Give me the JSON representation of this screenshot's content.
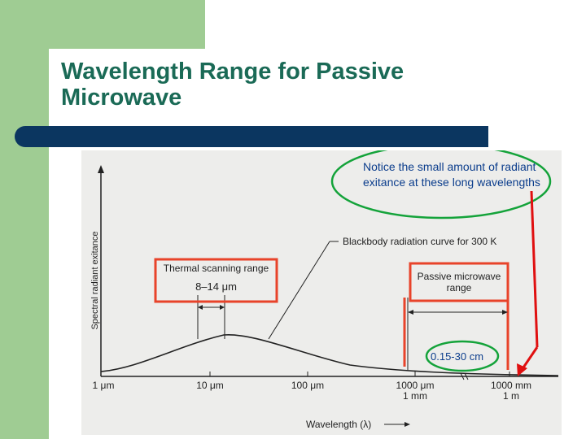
{
  "slide": {
    "title": "Wavelength Range for Passive Microwave"
  },
  "figure": {
    "ylabel": "Spectral radiant exitance",
    "xlabel": "Wavelength (λ)",
    "curve_label": "Blackbody radiation curve for 300 K",
    "thermal_box": {
      "title": "Thermal scanning range",
      "range": "8–14 μm"
    },
    "microwave_box": {
      "title": "Passive microwave range"
    },
    "x_ticks": [
      {
        "top": "1 μm",
        "bottom": ""
      },
      {
        "top": "10 μm",
        "bottom": ""
      },
      {
        "top": "100 μm",
        "bottom": ""
      },
      {
        "top": "1000 μm",
        "bottom": "1 mm"
      },
      {
        "top": "1000 mm",
        "bottom": "1 m"
      }
    ]
  },
  "annotations": {
    "callout": "Notice the small amount of radiant exitance at these long wavelengths",
    "highlight": "0.15-30 cm"
  },
  "colors": {
    "background_green": "#9fcc93",
    "title_color": "#1a6a56",
    "title_bar": "#0b3660",
    "box_red": "#e8432a",
    "ellipse_green": "#14a33a",
    "arrow_red": "#e01010"
  }
}
